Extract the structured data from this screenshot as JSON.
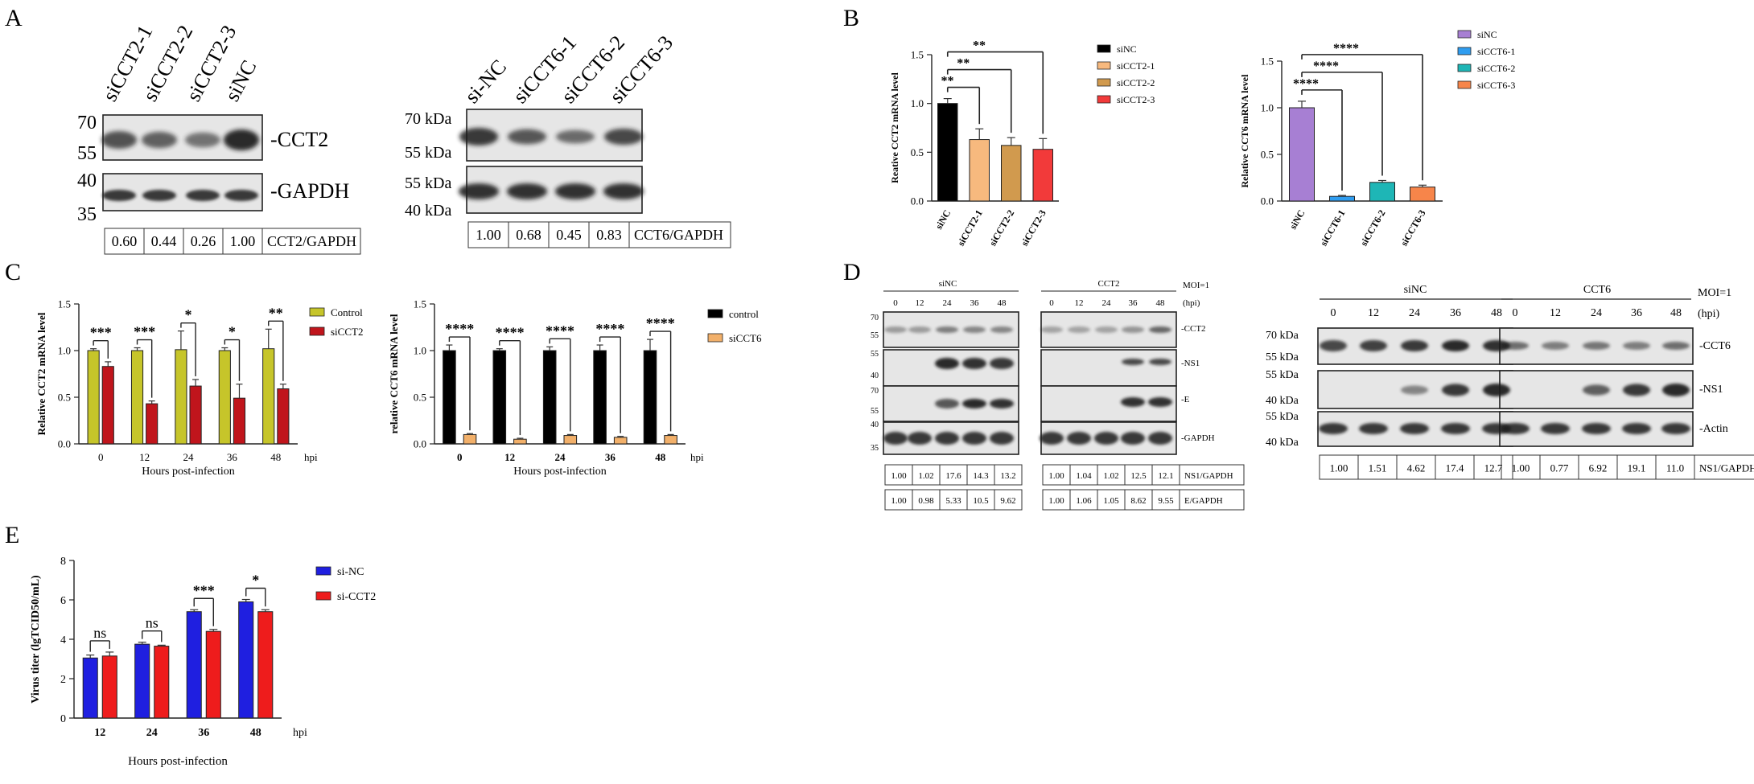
{
  "panels": {
    "A": {
      "letter": "A",
      "blot1": {
        "lanes": [
          "siCCT2-1",
          "siCCT2-2",
          "siCCT2-3",
          "siNC"
        ],
        "markers": [
          "70",
          "55",
          "40",
          "35"
        ],
        "rows": [
          "-CCT2",
          "-GAPDH"
        ],
        "quant": [
          "0.60",
          "0.44",
          "0.26",
          "1.00"
        ],
        "quant_label": "CCT2/GAPDH",
        "band_level": [
          0.6,
          0.44,
          0.26,
          1.0
        ]
      },
      "blot2": {
        "lanes": [
          "si-NC",
          "siCCT6-1",
          "siCCT6-2",
          "siCCT6-3"
        ],
        "markers": [
          "70 kDa",
          "55 kDa",
          "55 kDa",
          "40 kDa"
        ],
        "quant": [
          "1.00",
          "0.68",
          "0.45",
          "0.83"
        ],
        "quant_label": "CCT6/GAPDH",
        "band_level": [
          1.0,
          0.68,
          0.45,
          0.83
        ]
      }
    },
    "B": {
      "letter": "B"
    },
    "C": {
      "letter": "C"
    },
    "D": {
      "letter": "D",
      "blot1": {
        "group1": "siNC",
        "group2": "CCT2",
        "moi": "MOI=1",
        "hpi_unit": "(hpi)",
        "timepoints": [
          "0",
          "12",
          "24",
          "36",
          "48"
        ],
        "markers": [
          "70",
          "55",
          "55",
          "40",
          "70",
          "55",
          "40",
          "35"
        ],
        "rows": [
          "-CCT2",
          "-NS1",
          "-E",
          "-GAPDH"
        ],
        "quant1_g1": [
          "1.00",
          "1.02",
          "17.6",
          "14.3",
          "13.2"
        ],
        "quant1_g2": [
          "1.00",
          "1.04",
          "1.02",
          "12.5",
          "12.1"
        ],
        "quant1_label": "NS1/GAPDH",
        "quant2_g1": [
          "1.00",
          "0.98",
          "5.33",
          "10.5",
          "9.62"
        ],
        "quant2_g2": [
          "1.00",
          "1.06",
          "1.05",
          "8.62",
          "9.55"
        ],
        "quant2_label": "E/GAPDH"
      },
      "blot2": {
        "group1": "siNC",
        "group2": "CCT6",
        "moi": "MOI=1",
        "hpi_unit": "(hpi)",
        "timepoints": [
          "0",
          "12",
          "24",
          "36",
          "48"
        ],
        "markers": [
          "70 kDa",
          "55 kDa",
          "55 kDa",
          "40 kDa",
          "55 kDa",
          "40 kDa"
        ],
        "rows": [
          "-CCT6",
          "-NS1",
          "-Actin"
        ],
        "quant_g1": [
          "1.00",
          "1.51",
          "4.62",
          "17.4",
          "12.7"
        ],
        "quant_g2": [
          "1.00",
          "0.77",
          "6.92",
          "19.1",
          "11.0"
        ],
        "quant_label": "NS1/GAPDH"
      }
    },
    "E": {
      "letter": "E"
    }
  },
  "chart_data": [
    {
      "id": "B1",
      "type": "bar",
      "categories": [
        "siNC",
        "siCCT2-1",
        "siCCT2-2",
        "siCCT2-3"
      ],
      "values": [
        1.0,
        0.63,
        0.57,
        0.53
      ],
      "errors": [
        0.05,
        0.11,
        0.08,
        0.11
      ],
      "colors": [
        "#000000",
        "#f7b97e",
        "#d19a4e",
        "#f23a3a"
      ],
      "legend": [
        "siNC",
        "siCCT2-1",
        "siCCT2-2",
        "siCCT2-3"
      ],
      "ylabel": "Reative CCT2 mRNA level",
      "ylim": [
        0,
        1.5
      ],
      "yticks": [
        "0.0",
        "0.5",
        "1.0",
        "1.5"
      ],
      "sig": [
        {
          "from": 0,
          "to": 1,
          "label": "**"
        },
        {
          "from": 0,
          "to": 2,
          "label": "**"
        },
        {
          "from": 0,
          "to": 3,
          "label": "**"
        }
      ]
    },
    {
      "id": "B2",
      "type": "bar",
      "categories": [
        "siNC",
        "siCCT6-1",
        "siCCT6-2",
        "siCCT6-3"
      ],
      "values": [
        1.0,
        0.05,
        0.2,
        0.15
      ],
      "errors": [
        0.07,
        0.01,
        0.02,
        0.02
      ],
      "colors": [
        "#a77fd3",
        "#2f9df0",
        "#1eb6b6",
        "#f7854a"
      ],
      "legend": [
        "siNC",
        "siCCT6-1",
        "siCCT6-2",
        "siCCT6-3"
      ],
      "ylabel": "Relative CCT6 mRNA level",
      "ylim": [
        0,
        1.5
      ],
      "yticks": [
        "0.0",
        "0.5",
        "1.0",
        "1.5"
      ],
      "sig": [
        {
          "from": 0,
          "to": 1,
          "label": "****"
        },
        {
          "from": 0,
          "to": 2,
          "label": "****"
        },
        {
          "from": 0,
          "to": 3,
          "label": "****"
        }
      ]
    },
    {
      "id": "C1",
      "type": "bar",
      "categories": [
        "0",
        "12",
        "24",
        "36",
        "48"
      ],
      "series": [
        {
          "name": "Control",
          "color": "#c6c52a",
          "values": [
            1.0,
            1.0,
            1.01,
            1.0,
            1.02
          ],
          "errors": [
            0.02,
            0.03,
            0.2,
            0.03,
            0.21
          ]
        },
        {
          "name": "siCCT2",
          "color": "#c0151c",
          "values": [
            0.83,
            0.43,
            0.62,
            0.49,
            0.59
          ],
          "errors": [
            0.05,
            0.03,
            0.07,
            0.15,
            0.05
          ]
        }
      ],
      "sig": [
        "***",
        "***",
        "*",
        "*",
        "**"
      ],
      "xlabel": "Hours post-infection",
      "xunit": "hpi",
      "ylabel": "Relative CCT2 mRNA level",
      "ylim": [
        0,
        1.5
      ],
      "yticks": [
        "0.0",
        "0.5",
        "1.0",
        "1.5"
      ]
    },
    {
      "id": "C2",
      "type": "bar",
      "categories": [
        "0",
        "12",
        "24",
        "36",
        "48"
      ],
      "series": [
        {
          "name": "control",
          "color": "#000000",
          "values": [
            1.0,
            1.0,
            1.0,
            1.0,
            1.0
          ],
          "errors": [
            0.06,
            0.02,
            0.04,
            0.06,
            0.12
          ]
        },
        {
          "name": "siCCT6",
          "color": "#f2b06a",
          "values": [
            0.1,
            0.05,
            0.09,
            0.07,
            0.09
          ],
          "errors": [
            0.01,
            0.01,
            0.01,
            0.01,
            0.01
          ]
        }
      ],
      "sig": [
        "****",
        "****",
        "****",
        "****",
        "****"
      ],
      "xlabel": "Hours post-infection",
      "xunit": "hpi",
      "ylabel": "relative CCT6 mRNA level",
      "ylim": [
        0,
        1.5
      ],
      "yticks": [
        "0.0",
        "0.5",
        "1.0",
        "1.5"
      ]
    },
    {
      "id": "E1",
      "type": "bar",
      "categories": [
        "12",
        "24",
        "36",
        "48"
      ],
      "series": [
        {
          "name": "si-NC",
          "color": "#1f1fe0",
          "values": [
            3.05,
            3.75,
            5.4,
            5.9
          ],
          "errors": [
            0.15,
            0.1,
            0.1,
            0.12
          ]
        },
        {
          "name": "si-CCT2",
          "color": "#ee1c1c",
          "values": [
            3.15,
            3.65,
            4.4,
            5.4
          ],
          "errors": [
            0.2,
            0.05,
            0.1,
            0.1
          ]
        }
      ],
      "sig": [
        "ns",
        "ns",
        "***",
        "*"
      ],
      "xlabel": "Hours post-infection",
      "xunit": "hpi",
      "ylabel": "Virus titer (lgTCID50/mL)",
      "ylim": [
        0,
        8
      ],
      "yticks": [
        "0",
        "2",
        "4",
        "6",
        "8"
      ]
    }
  ]
}
